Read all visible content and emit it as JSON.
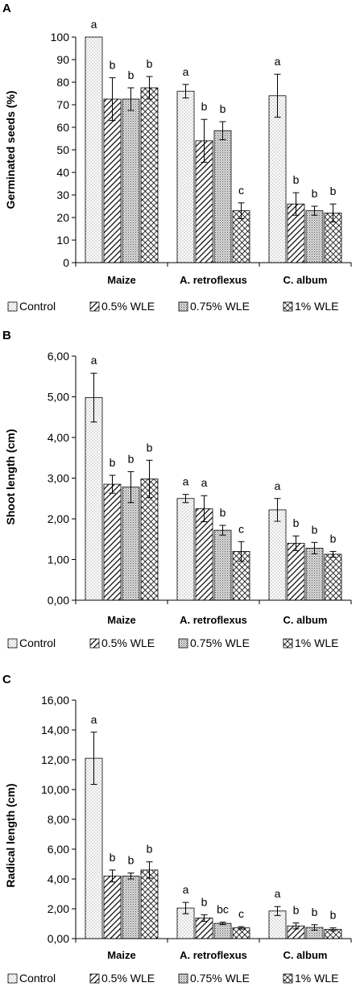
{
  "chart_data": [
    {
      "panel_label": "A",
      "type": "bar",
      "ylabel": "Germinated seeds (%)",
      "xlabel": "",
      "ylim": [
        0,
        100
      ],
      "yticks": [
        "0",
        "10",
        "20",
        "30",
        "40",
        "50",
        "60",
        "70",
        "80",
        "90",
        "100"
      ],
      "categories": [
        "Maize",
        "A. retroflexus",
        "C. album"
      ],
      "series": [
        {
          "name": "Control",
          "values": [
            100,
            76,
            74
          ],
          "errors": [
            0,
            3,
            9.5
          ],
          "letters": [
            "a",
            "a",
            "a"
          ]
        },
        {
          "name": "0.5% WLE",
          "values": [
            72.5,
            54,
            26
          ],
          "errors": [
            9.5,
            9.5,
            5
          ],
          "letters": [
            "b",
            "b",
            "b"
          ]
        },
        {
          "name": "0.75% WLE",
          "values": [
            72.5,
            58.5,
            23
          ],
          "errors": [
            5,
            4,
            2
          ],
          "letters": [
            "b",
            "b",
            "b"
          ]
        },
        {
          "name": "1% WLE",
          "values": [
            77.5,
            23,
            22
          ],
          "errors": [
            5,
            3.5,
            4
          ],
          "letters": [
            "b",
            "c",
            "b"
          ]
        }
      ],
      "legend_position": "bottom",
      "grid": false
    },
    {
      "panel_label": "B",
      "type": "bar",
      "ylabel": "Shoot length (cm)",
      "xlabel": "",
      "ylim": [
        0,
        6
      ],
      "yticks": [
        "0,00",
        "1,00",
        "2,00",
        "3,00",
        "4,00",
        "5,00",
        "6,00"
      ],
      "categories": [
        "Maize",
        "A. retroflexus",
        "C. album"
      ],
      "series": [
        {
          "name": "Control",
          "values": [
            4.98,
            2.5,
            2.22
          ],
          "errors": [
            0.6,
            0.1,
            0.28
          ],
          "letters": [
            "a",
            "a",
            "a"
          ]
        },
        {
          "name": "0.5% WLE",
          "values": [
            2.85,
            2.25,
            1.4
          ],
          "errors": [
            0.22,
            0.32,
            0.18
          ],
          "letters": [
            "b",
            "a",
            "b"
          ]
        },
        {
          "name": "0.75% WLE",
          "values": [
            2.78,
            1.72,
            1.28
          ],
          "errors": [
            0.38,
            0.12,
            0.14
          ],
          "letters": [
            "b",
            "b",
            "b"
          ]
        },
        {
          "name": "1% WLE",
          "values": [
            2.98,
            1.2,
            1.13
          ],
          "errors": [
            0.46,
            0.24,
            0.07
          ],
          "letters": [
            "b",
            "c",
            "b"
          ]
        }
      ],
      "legend_position": "bottom",
      "grid": false
    },
    {
      "panel_label": "C",
      "type": "bar",
      "ylabel": "Radical length (cm)",
      "xlabel": "",
      "ylim": [
        0,
        16
      ],
      "yticks": [
        "0,00",
        "2,00",
        "4,00",
        "6,00",
        "8,00",
        "10,00",
        "12,00",
        "14,00",
        "16,00"
      ],
      "categories": [
        "Maize",
        "A. retroflexus",
        "C. album"
      ],
      "series": [
        {
          "name": "Control",
          "values": [
            12.1,
            2.05,
            1.85
          ],
          "errors": [
            1.75,
            0.38,
            0.3
          ],
          "letters": [
            "a",
            "a",
            "a"
          ]
        },
        {
          "name": "0.5% WLE",
          "values": [
            4.2,
            1.38,
            0.85
          ],
          "errors": [
            0.4,
            0.22,
            0.2
          ],
          "letters": [
            "b",
            "b",
            "b"
          ]
        },
        {
          "name": "0.75% WLE",
          "values": [
            4.2,
            1.02,
            0.75
          ],
          "errors": [
            0.2,
            0.08,
            0.18
          ],
          "letters": [
            "b",
            "bc",
            "b"
          ]
        },
        {
          "name": "1% WLE",
          "values": [
            4.6,
            0.72,
            0.62
          ],
          "errors": [
            0.55,
            0.08,
            0.1
          ],
          "letters": [
            "b",
            "c",
            "b"
          ]
        }
      ],
      "legend_position": "bottom",
      "grid": false
    }
  ]
}
